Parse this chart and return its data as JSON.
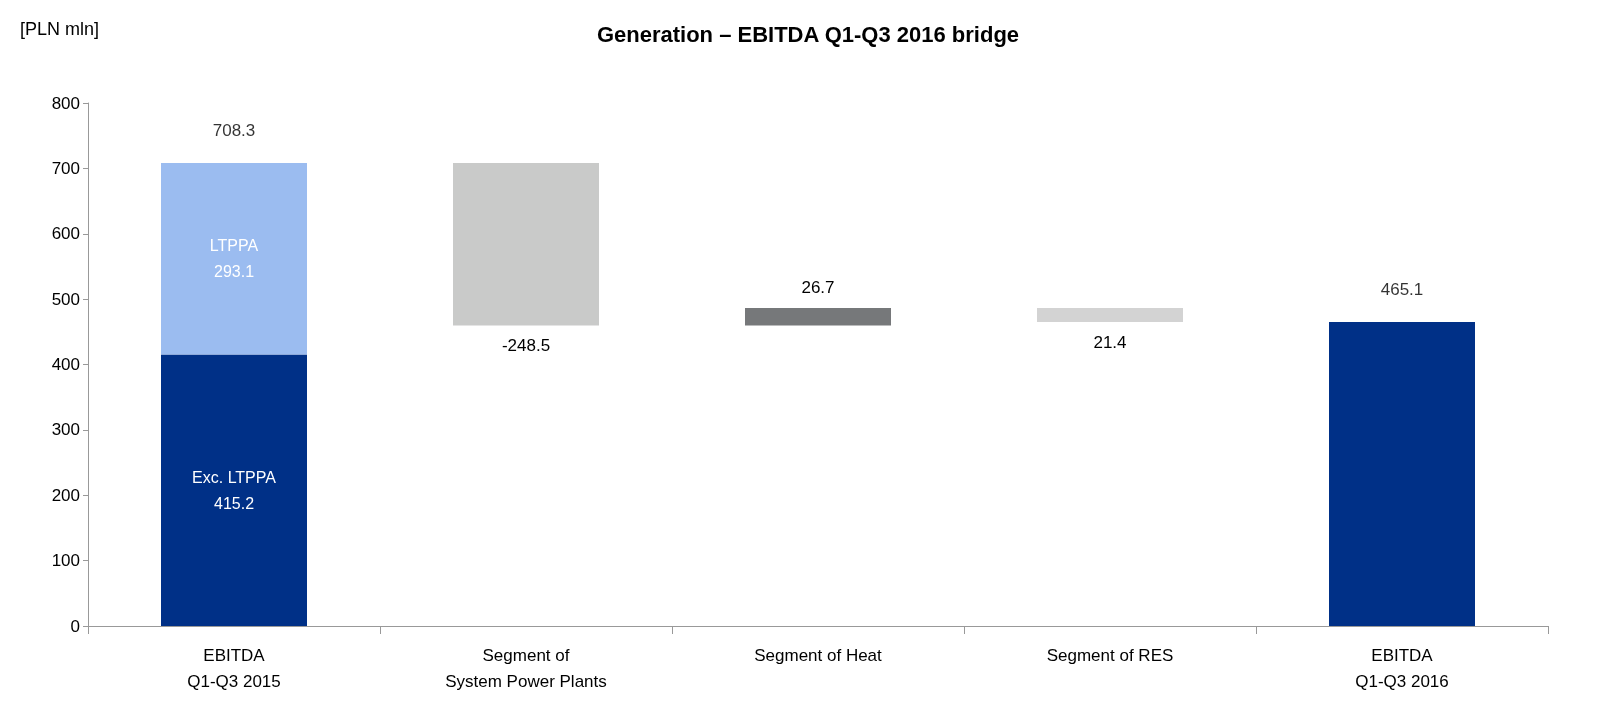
{
  "chart_data": {
    "type": "bar",
    "title": "Generation – EBITDA Q1-Q3 2016 bridge",
    "ylabel": "[PLN mln]",
    "categories": [
      "EBITDA\nQ1-Q3 2015",
      "Segment of\nSystem Power Plants",
      "Segment of Heat",
      "Segment of RES",
      "EBITDA\nQ1-Q3 2016"
    ],
    "stacked": true,
    "series": [
      {
        "name": "Exc. LTPPA",
        "color": "#003087",
        "values": [
          415.2,
          null,
          null,
          null,
          465.1
        ],
        "value_labels": [
          "415.2",
          null,
          null,
          null,
          null
        ]
      },
      {
        "name": "LTPPA",
        "color": "#9bbcf0",
        "values": [
          293.1,
          null,
          null,
          null,
          null
        ],
        "value_labels": [
          "293.1",
          null,
          null,
          null,
          null
        ]
      },
      {
        "values": [
          null,
          -248.5,
          26.7,
          -21.4,
          null
        ],
        "base": [
          null,
          708.3,
          459.8,
          486.5,
          null
        ],
        "colors": [
          null,
          "#c9cac9",
          "#76787a",
          "#d3d3d3",
          null
        ],
        "value_labels": [
          null,
          "-248.5",
          "26.7",
          "21.4",
          null
        ]
      }
    ],
    "totals": [
      "708.3",
      null,
      null,
      null,
      "465.1"
    ],
    "ylim": [
      0,
      800
    ],
    "yticks": [
      0,
      100,
      200,
      300,
      400,
      500,
      600,
      700,
      800
    ],
    "grid": false,
    "legend": false
  }
}
